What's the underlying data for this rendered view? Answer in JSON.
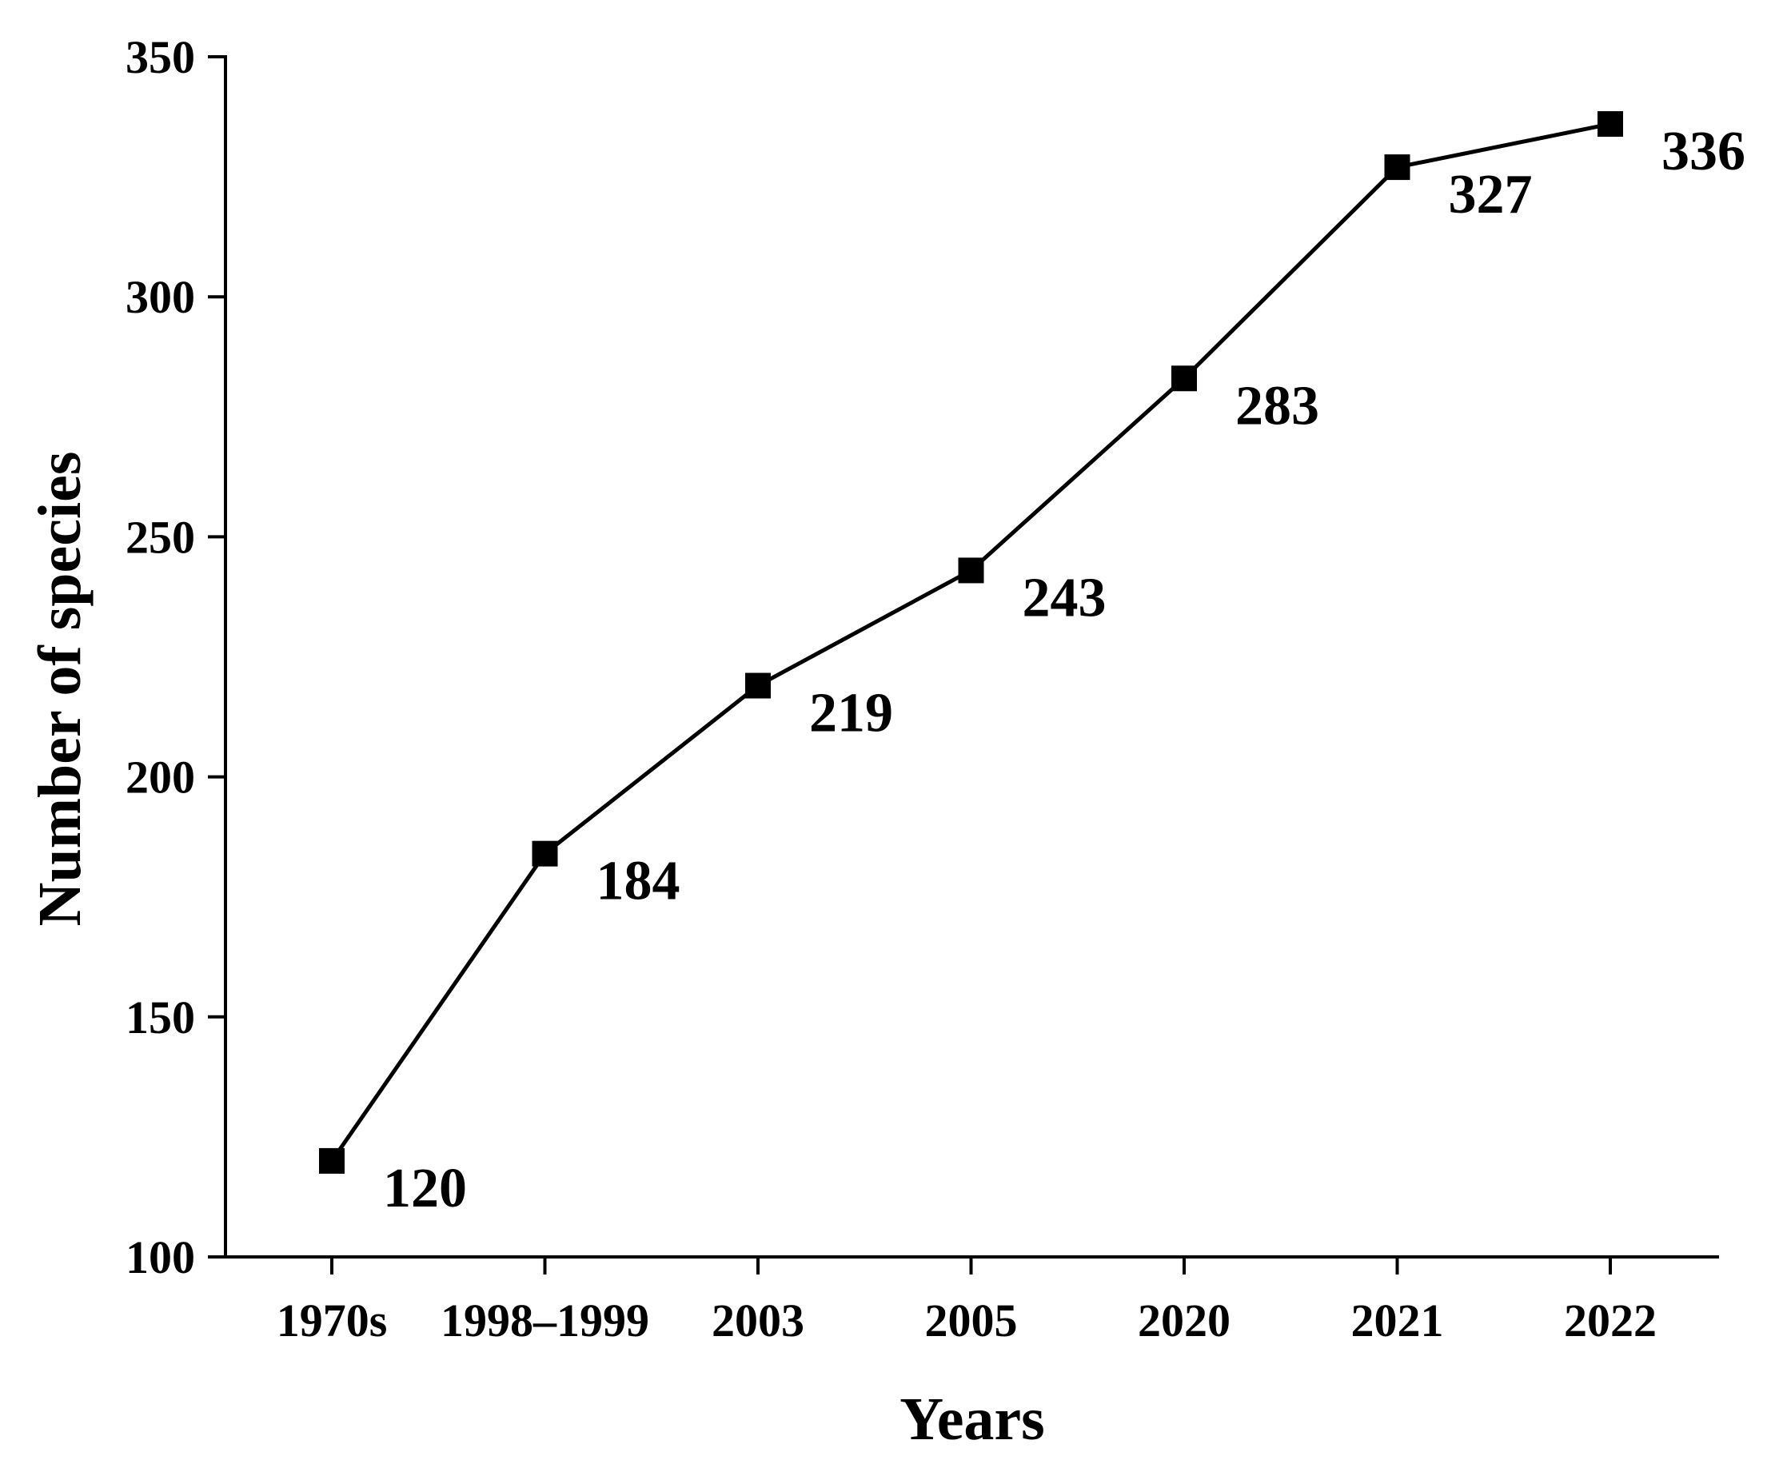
{
  "chart_data": {
    "type": "line",
    "title": "",
    "xlabel": "Years",
    "ylabel": "Number of species",
    "categories": [
      "1970s",
      "1998–1999",
      "2003",
      "2005",
      "2020",
      "2021",
      "2022"
    ],
    "values": [
      120,
      184,
      219,
      243,
      283,
      327,
      336
    ],
    "data_labels": [
      "120",
      "184",
      "219",
      "243",
      "283",
      "327",
      "336"
    ],
    "ylim": [
      100,
      350
    ],
    "yticks": [
      100,
      150,
      200,
      250,
      300,
      350
    ],
    "ytick_labels": [
      "100",
      "150",
      "200",
      "250",
      "300",
      "350"
    ],
    "grid": false,
    "legend": "none",
    "marker": "square",
    "line_color": "#000000"
  }
}
